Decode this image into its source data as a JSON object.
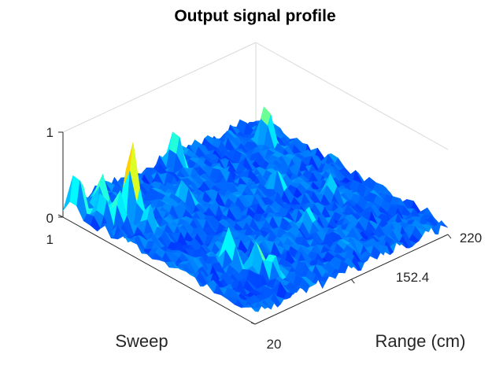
{
  "chart_data": {
    "type": "surface",
    "title": "Output signal profile",
    "xlabel": "Range (cm)",
    "ylabel": "Sweep",
    "zlabel": "",
    "x_ticks": [
      "152.4",
      "220"
    ],
    "y_ticks": [
      "1",
      "20"
    ],
    "z_ticks": [
      "0",
      "1"
    ],
    "xlim": [
      85,
      220
    ],
    "ylim": [
      1,
      20
    ],
    "zlim": [
      0,
      1
    ],
    "colormap": "jet",
    "grid": false,
    "noise_level": 0.2,
    "peaks": [
      {
        "x": 105,
        "y": 5,
        "z": 1.0
      },
      {
        "x": 88,
        "y": 2,
        "z": 0.62
      },
      {
        "x": 98,
        "y": 3,
        "z": 0.55
      },
      {
        "x": 96,
        "y": 5,
        "z": 0.5
      },
      {
        "x": 92,
        "y": 4,
        "z": 0.45
      },
      {
        "x": 103,
        "y": 7,
        "z": 0.42
      },
      {
        "x": 110,
        "y": 14,
        "z": 0.55
      },
      {
        "x": 115,
        "y": 16,
        "z": 0.5
      },
      {
        "x": 118,
        "y": 17,
        "z": 0.42
      },
      {
        "x": 157,
        "y": 2,
        "z": 0.55
      },
      {
        "x": 206,
        "y": 4,
        "z": 0.6
      },
      {
        "x": 178,
        "y": 9,
        "z": 0.4
      },
      {
        "x": 195,
        "y": 12,
        "z": 0.38
      },
      {
        "x": 135,
        "y": 6,
        "z": 0.4
      },
      {
        "x": 165,
        "y": 14,
        "z": 0.38
      }
    ]
  }
}
